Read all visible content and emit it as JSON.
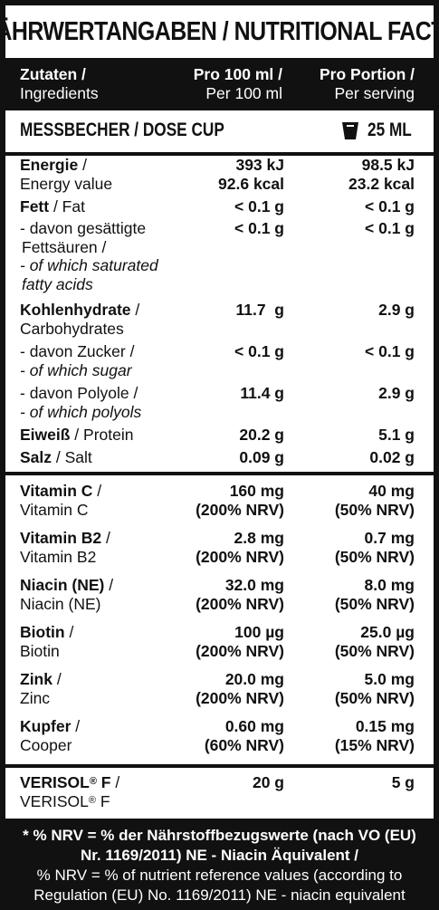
{
  "title": "NÄHRWERTANGABEN / NUTRITIONAL FACTS",
  "header": {
    "col1_de": "Zutaten /",
    "col1_en": "Ingredients",
    "col2_de": "Pro 100 ml /",
    "col2_en": "Per 100 ml",
    "col3_de": "Pro Portion /",
    "col3_en": "Per serving"
  },
  "dose": {
    "label": "MESSBECHER / DOSE CUP",
    "icon": "cup-icon",
    "value": "25 ML"
  },
  "nutrients": {
    "energy": {
      "de": "Energie",
      "sep": " /",
      "en": "Energy value",
      "per100_kj": "393 kJ",
      "per100_kcal": "92.6 kcal",
      "portion_kj": "98.5 kJ",
      "portion_kcal": "23.2 kcal"
    },
    "fat": {
      "de": "Fett",
      "en": " / Fat",
      "per100": "< 0.1 g",
      "portion": "< 0.1 g"
    },
    "saturated": {
      "de1": "- davon gesättigte",
      "de2": "Fettsäuren /",
      "en1": "- of which saturated",
      "en2": "fatty acids",
      "per100": "< 0.1 g",
      "portion": "< 0.1 g"
    },
    "carbs": {
      "de": "Kohlenhydrate",
      "sep": " /",
      "en": "Carbohydrates",
      "per100": "11.7  g",
      "portion": "2.9 g"
    },
    "sugar": {
      "de": "- davon Zucker /",
      "en": "- of which sugar",
      "per100": "< 0.1 g",
      "portion": "< 0.1 g"
    },
    "polyols": {
      "de": "- davon Polyole /",
      "en": "- of which polyols",
      "per100": "11.4 g",
      "portion": "2.9 g"
    },
    "protein": {
      "de": "Eiweiß",
      "en": " / Protein",
      "per100": "20.2 g",
      "portion": "5.1 g"
    },
    "salt": {
      "de": "Salz",
      "en": " / Salt",
      "per100": "0.09 g",
      "portion": "0.02 g"
    }
  },
  "vitamins": [
    {
      "de": "Vitamin C",
      "en": "Vitamin C",
      "per100": "160 mg",
      "per100_nrv": "(200% NRV)",
      "portion": "40 mg",
      "portion_nrv": "(50% NRV)"
    },
    {
      "de": "Vitamin B2",
      "en": "Vitamin B2",
      "per100": "2.8 mg",
      "per100_nrv": "(200% NRV)",
      "portion": "0.7 mg",
      "portion_nrv": "(50% NRV)"
    },
    {
      "de": "Niacin (NE)",
      "en": "Niacin (NE)",
      "per100": "32.0 mg",
      "per100_nrv": "(200% NRV)",
      "portion": "8.0 mg",
      "portion_nrv": "(50% NRV)"
    },
    {
      "de": "Biotin",
      "en": "Biotin",
      "per100": "100 µg",
      "per100_nrv": "(200% NRV)",
      "portion": "25.0 µg",
      "portion_nrv": "(50% NRV)"
    },
    {
      "de": "Zink",
      "en": "Zinc",
      "per100": "20.0 mg",
      "per100_nrv": "(200% NRV)",
      "portion": "5.0 mg",
      "portion_nrv": "(50% NRV)"
    },
    {
      "de": "Kupfer",
      "en": "Cooper",
      "per100": "0.60 mg",
      "per100_nrv": "(60% NRV)",
      "portion": "0.15 mg",
      "portion_nrv": "(15% NRV)"
    }
  ],
  "verisol": {
    "name": "VERISOL",
    "mark": "®",
    "suffix": " F",
    "per100": "20 g",
    "portion": "5 g"
  },
  "footnote": {
    "line1": "* % NRV = % der Nährstoffbezugswerte (nach VO (EU)",
    "line2": "Nr. 1169/2011) NE - Niacin Äquivalent /",
    "line3": "% NRV = % of nutrient reference values (according to",
    "line4": "Regulation (EU) No. 1169/2011)  NE - niacin equivalent"
  }
}
